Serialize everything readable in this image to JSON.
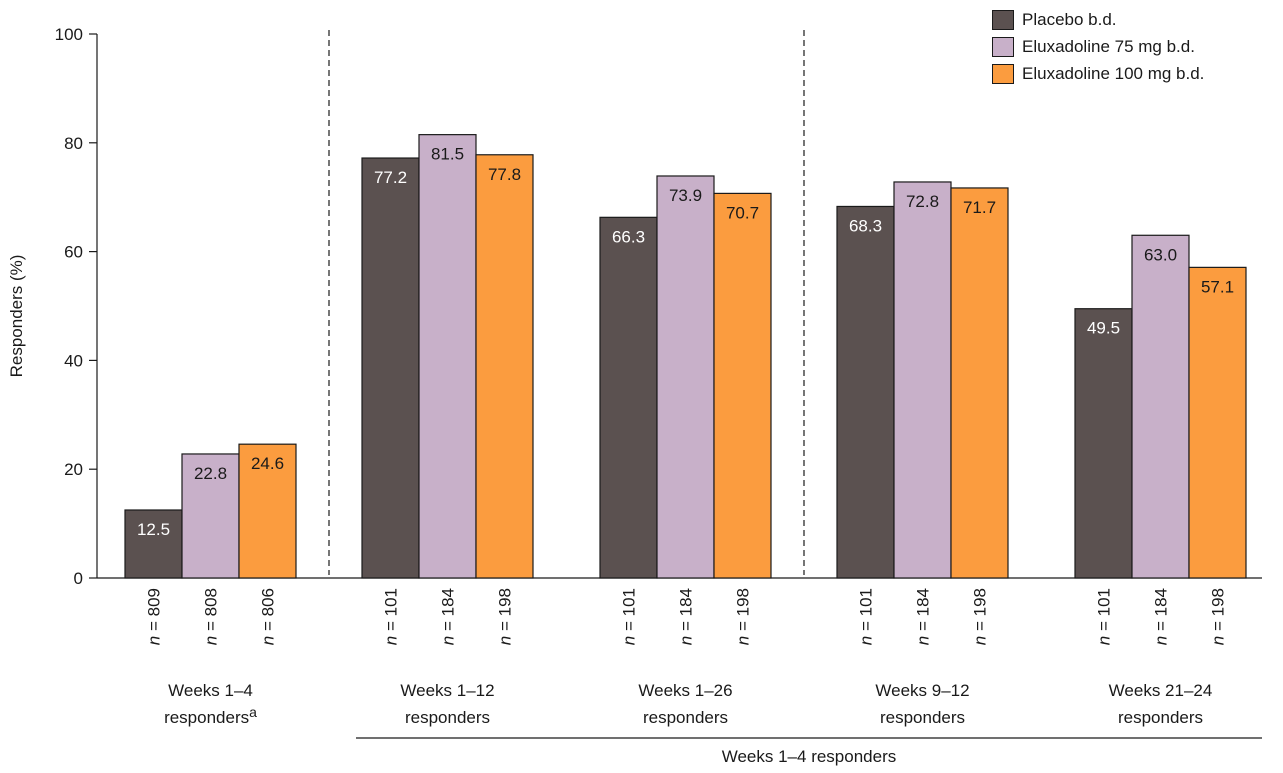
{
  "chart_data": {
    "type": "bar",
    "ylabel": "Responders (%)",
    "ylim": [
      0,
      100
    ],
    "yticks": [
      0,
      20,
      40,
      60,
      80,
      100
    ],
    "grid": false,
    "legend_position": "top-right",
    "groups": [
      {
        "label_lines": [
          "Weeks 1–4",
          "responders"
        ],
        "superscript": "a",
        "n": [
          "809",
          "808",
          "806"
        ]
      },
      {
        "label_lines": [
          "Weeks 1–12",
          "responders"
        ],
        "superscript": "",
        "n": [
          "101",
          "184",
          "198"
        ]
      },
      {
        "label_lines": [
          "Weeks 1–26",
          "responders"
        ],
        "superscript": "",
        "n": [
          "101",
          "184",
          "198"
        ]
      },
      {
        "label_lines": [
          "Weeks 9–12",
          "responders"
        ],
        "superscript": "",
        "n": [
          "101",
          "184",
          "198"
        ]
      },
      {
        "label_lines": [
          "Weeks 21–24",
          "responders"
        ],
        "superscript": "",
        "n": [
          "101",
          "184",
          "198"
        ]
      }
    ],
    "series": [
      {
        "name": "Placebo b.d.",
        "color": "#5b5150",
        "label_color": "#ffffff",
        "values": [
          12.5,
          77.2,
          66.3,
          68.3,
          49.5
        ]
      },
      {
        "name": "Eluxadoline 75 mg b.d.",
        "color": "#c8b0c9",
        "label_color": "#1a1a1a",
        "values": [
          22.8,
          81.5,
          73.9,
          72.8,
          63.0
        ]
      },
      {
        "name": "Eluxadoline 100 mg b.d.",
        "color": "#fb9c3f",
        "label_color": "#1a1a1a",
        "values": [
          24.6,
          77.8,
          70.7,
          71.7,
          57.1
        ]
      }
    ],
    "n_prefix": "n",
    "n_separator": " = ",
    "bracket_label": "Weeks 1–4 responders"
  }
}
